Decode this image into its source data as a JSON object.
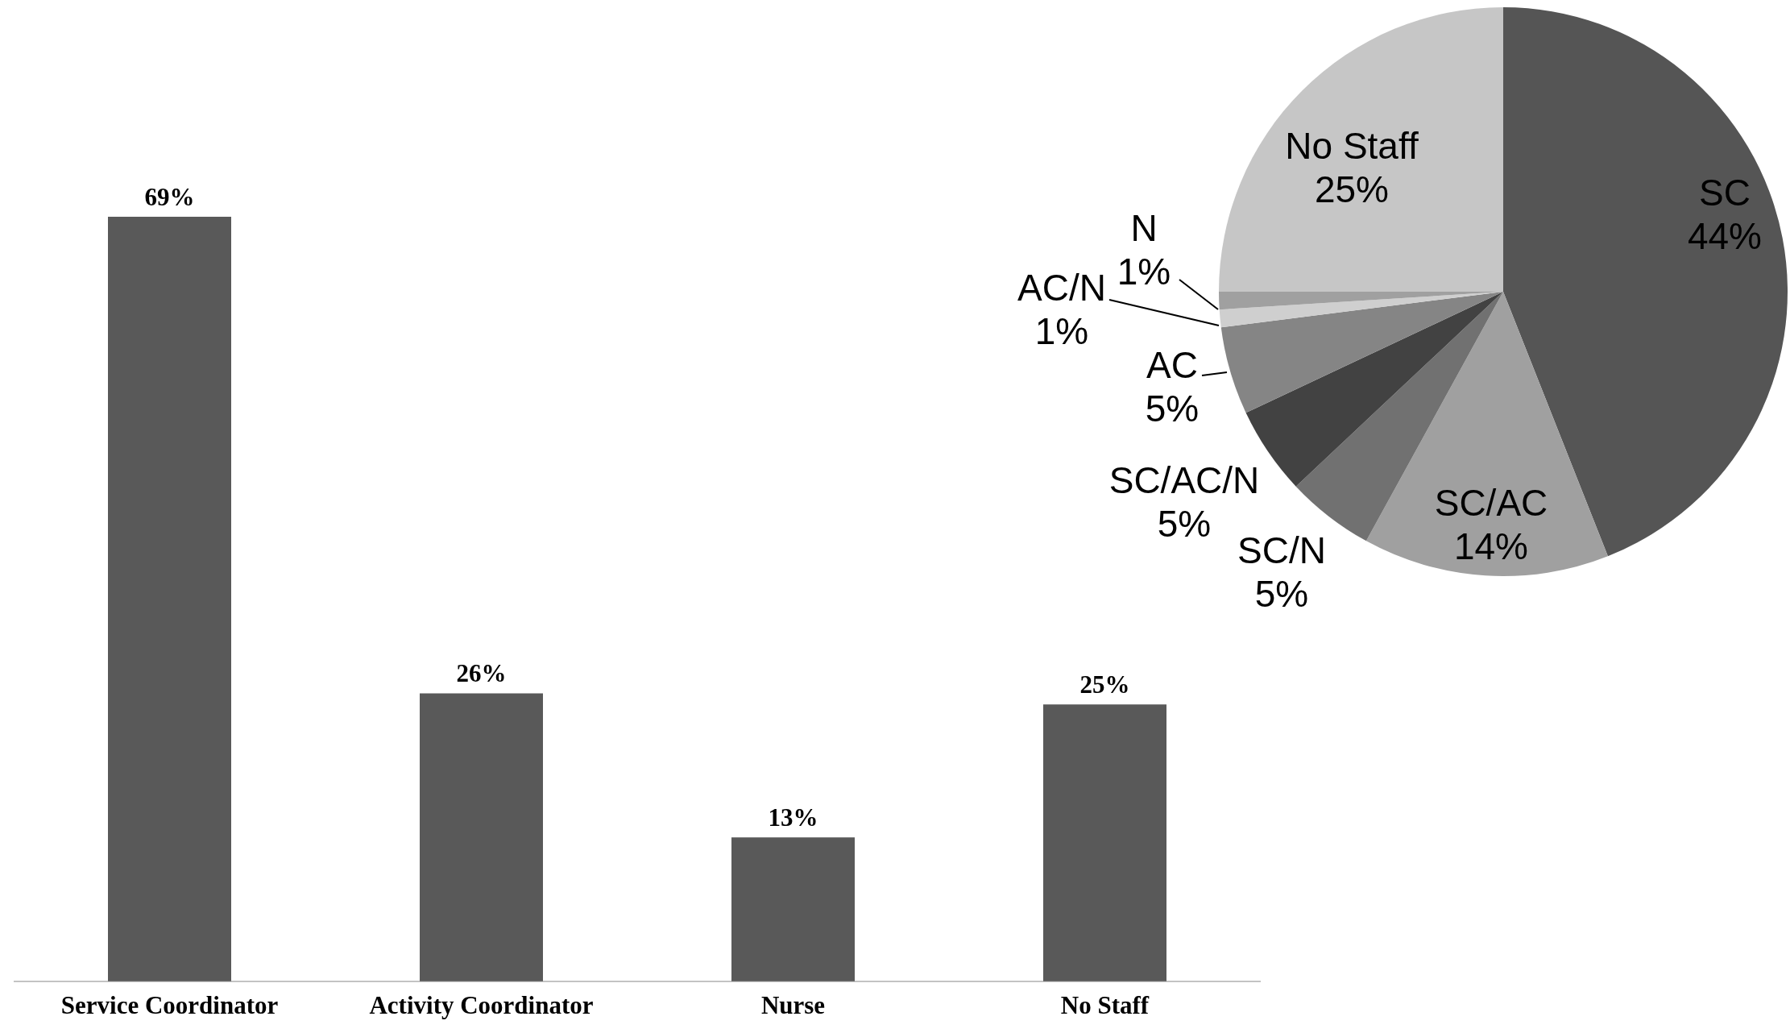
{
  "chart_data": [
    {
      "type": "bar",
      "categories": [
        "Service Coordinator",
        "Activity Coordinator",
        "Nurse",
        "No Staff"
      ],
      "values": [
        69,
        26,
        13,
        25
      ],
      "value_labels": [
        "69%",
        "26%",
        "13%",
        "25%"
      ],
      "color": "#595959"
    },
    {
      "type": "pie",
      "categories": [
        "SC",
        "SC/AC",
        "SC/N",
        "SC/AC/N",
        "AC",
        "AC/N",
        "N",
        "No Staff"
      ],
      "values": [
        44,
        14,
        5,
        5,
        5,
        1,
        1,
        25
      ],
      "value_labels": [
        "44%",
        "14%",
        "5%",
        "5%",
        "5%",
        "1%",
        "1%",
        "25%"
      ],
      "colors": [
        "#555555",
        "#a0a0a0",
        "#717171",
        "#424242",
        "#858585",
        "#cfcfcf",
        "#a0a0a0",
        "#c6c6c6"
      ]
    }
  ]
}
